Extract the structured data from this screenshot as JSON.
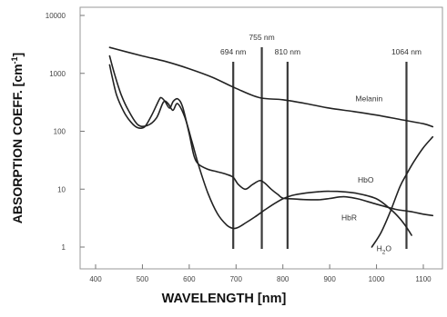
{
  "chart_data": {
    "type": "line",
    "title": "",
    "xlabel": "WAVELENGTH  [nm]",
    "ylabel": "ABSORPTION COEFF. [cm",
    "ylabel_exponent": "-1",
    "ylabel_close": "]",
    "xlim": [
      350,
      1150
    ],
    "ylim": [
      0.5,
      15000
    ],
    "yscale": "log",
    "grid": false,
    "x_ticks": [
      400,
      500,
      600,
      700,
      800,
      900,
      1000,
      1100
    ],
    "x_tick_labels": [
      "400",
      "500",
      "600",
      "700",
      "800",
      "900",
      "1000",
      "1100"
    ],
    "y_ticks": [
      1,
      10,
      100,
      1000,
      10000
    ],
    "y_tick_labels": [
      "1",
      "10",
      "100",
      "1000",
      "10000"
    ],
    "markers": [
      {
        "x": 694,
        "label": "694 nm"
      },
      {
        "x": 755,
        "label": "755 nm"
      },
      {
        "x": 810,
        "label": "810 nm"
      },
      {
        "x": 1064,
        "label": "1064 nm"
      }
    ],
    "series": [
      {
        "name": "Melanin",
        "x": [
          430,
          500,
          550,
          600,
          650,
          700,
          750,
          800,
          850,
          900,
          950,
          1000,
          1050,
          1100,
          1120
        ],
        "y": [
          2800,
          2000,
          1600,
          1200,
          850,
          550,
          380,
          350,
          300,
          250,
          220,
          190,
          160,
          135,
          120
        ]
      },
      {
        "name": "HbO",
        "x": [
          430,
          435,
          445,
          460,
          475,
          490,
          505,
          520,
          535,
          540,
          548,
          558,
          566,
          576,
          586,
          600,
          610,
          620,
          640,
          660,
          680,
          694,
          705,
          720,
          735,
          750,
          760,
          775,
          790,
          800,
          820,
          850,
          880,
          900,
          930,
          960,
          1000,
          1040,
          1064,
          1080,
          1100,
          1120
        ],
        "y": [
          1400,
          900,
          420,
          220,
          145,
          115,
          120,
          190,
          340,
          380,
          330,
          250,
          330,
          360,
          260,
          90,
          38,
          27,
          22,
          20,
          18,
          16,
          12,
          10,
          12,
          14,
          13,
          10,
          8,
          7,
          6.8,
          6.6,
          6.6,
          6.9,
          7.4,
          6.8,
          5.5,
          4.5,
          4.2,
          4.0,
          3.7,
          3.5
        ]
      },
      {
        "name": "HbR",
        "x": [
          430,
          440,
          455,
          470,
          490,
          510,
          530,
          545,
          555,
          565,
          575,
          590,
          605,
          620,
          640,
          660,
          680,
          694,
          705,
          720,
          740,
          760,
          780,
          800,
          820,
          850,
          880,
          900,
          930,
          960,
          1000,
          1030,
          1050,
          1064,
          1075
        ],
        "y": [
          2000,
          1000,
          420,
          230,
          130,
          125,
          170,
          320,
          300,
          230,
          300,
          180,
          70,
          26,
          8.5,
          3.8,
          2.4,
          2.1,
          2.2,
          2.6,
          3.3,
          4.3,
          5.5,
          6.8,
          7.8,
          8.6,
          9.1,
          9.2,
          9.0,
          8.4,
          6.8,
          4.5,
          3.1,
          2.2,
          1.6
        ]
      },
      {
        "name": "H2O",
        "x": [
          990,
          1010,
          1030,
          1050,
          1064,
          1080,
          1100,
          1120
        ],
        "y": [
          1.0,
          1.8,
          4.2,
          11,
          18,
          30,
          52,
          80
        ]
      }
    ],
    "curve_labels": [
      {
        "series": "Melanin",
        "text": "Melanin",
        "x": 955,
        "y": 330
      },
      {
        "series": "HbO",
        "text": "HbO",
        "x": 960,
        "y": 13
      },
      {
        "series": "HbR",
        "text": "HbR",
        "x": 925,
        "y": 2.9
      },
      {
        "series": "H2O",
        "text": "H",
        "sub": "2",
        "rest": "O",
        "x": 1000,
        "y": 0.85
      }
    ]
  }
}
